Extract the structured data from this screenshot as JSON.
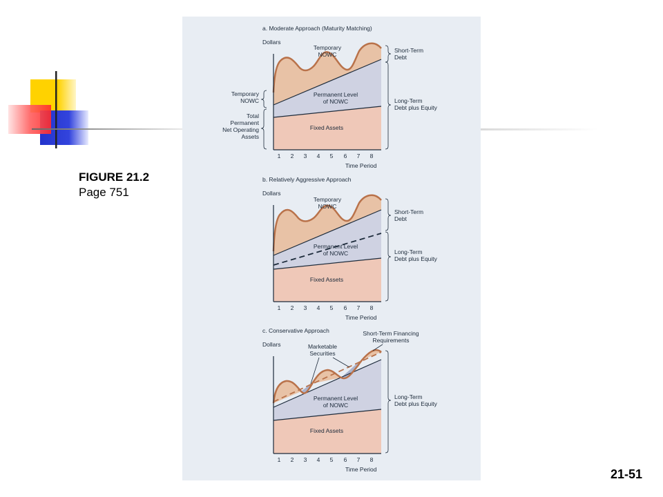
{
  "figure": {
    "title": "FIGURE 21.2",
    "page": "Page 751"
  },
  "slide_number": "21-51",
  "common": {
    "y_label": "Dollars",
    "x_label": "Time Period",
    "x_ticks": [
      "1",
      "2",
      "3",
      "4",
      "5",
      "6",
      "7",
      "8"
    ],
    "short_term_debt": [
      "Short-Term",
      "Debt"
    ],
    "long_term_debt": [
      "Long-Term",
      "Debt plus Equity"
    ],
    "temporary_nowc": [
      "Temporary",
      "NOWC"
    ],
    "permanent_nowc": [
      "Permanent Level",
      "of NOWC"
    ],
    "fixed_assets": "Fixed Assets"
  },
  "panels": {
    "a": {
      "title": "a. Moderate Approach (Maturity Matching)",
      "left_temporary": [
        "Temporary",
        "NOWC"
      ],
      "left_total": [
        "Total",
        "Permanent",
        "Net Operating",
        "Assets"
      ]
    },
    "b": {
      "title": "b. Relatively Aggressive Approach"
    },
    "c": {
      "title": "c. Conservative Approach",
      "marketable_securities": [
        "Marketable",
        "Securities"
      ],
      "short_term_financing": [
        "Short-Term Financing",
        "Requirements"
      ]
    }
  },
  "colors": {
    "panel_bg": "#e8edf3",
    "fixed_assets_fill": "#efc8b8",
    "permanent_fill": "#cfd2e2",
    "temporary_fill": "#e8c2a6",
    "wave_stroke": "#b9724a",
    "deco_yellow": "#ffd200",
    "deco_red": "#ff2a2a",
    "deco_blue": "#2233cc"
  }
}
